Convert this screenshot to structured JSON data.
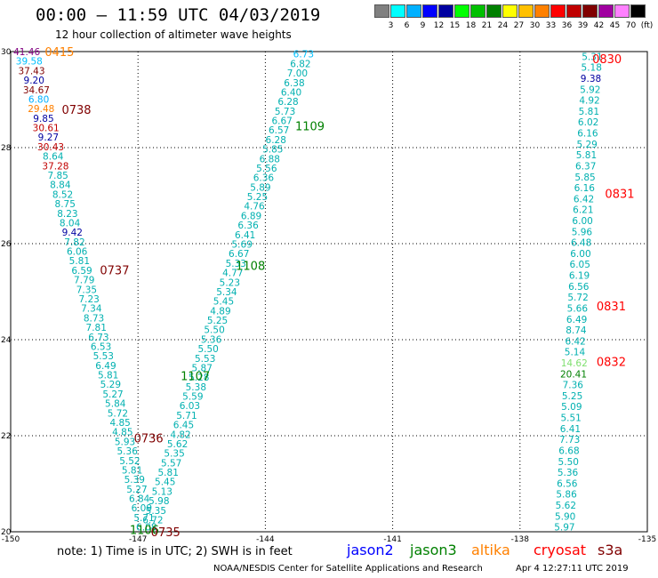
{
  "header": {
    "title": "00:00 – 11:59 UTC 04/03/2019",
    "subtitle": "12 hour collection of altimeter wave heights"
  },
  "scale": {
    "unit": "(ft)",
    "colors": [
      "#808080",
      "#00ffff",
      "#00b0ff",
      "#0000ff",
      "#0000a0",
      "#00ff00",
      "#00c000",
      "#008000",
      "#ffff00",
      "#ffc000",
      "#ff8000",
      "#ff0000",
      "#c00000",
      "#800000",
      "#a000a0",
      "#ff80ff",
      "#000000"
    ],
    "labels": [
      "3",
      "6",
      "9",
      "12",
      "15",
      "18",
      "21",
      "24",
      "27",
      "30",
      "33",
      "36",
      "39",
      "42",
      "45",
      "70"
    ]
  },
  "map": {
    "lon_ticks": [
      "-150",
      "-147",
      "-144",
      "-141",
      "-138",
      "-135"
    ],
    "lat_ticks": [
      "20",
      "22",
      "24",
      "26",
      "28",
      "30"
    ]
  },
  "chart_data": {
    "type": "scatter",
    "xlim": [
      -150,
      -135
    ],
    "ylim": [
      20,
      30
    ],
    "tracks": [
      {
        "name": "left",
        "start": [
          -149.62,
          30.0
        ],
        "end": [
          -146.8,
          20.1
        ],
        "values": [
          "41.46",
          "39.58",
          "37.43",
          "9.20",
          "34.67",
          "6.80",
          "29.48",
          "9.85",
          "30.61",
          "9.27",
          "30.43",
          "8.64",
          "37.28",
          "7.85",
          "8.84",
          "8.52",
          "8.75",
          "8.23",
          "8.04",
          "9.42",
          "7.82",
          "6.06",
          "5.81",
          "6.59",
          "7.79",
          "7.35",
          "7.23",
          "7.34",
          "8.73",
          "7.81",
          "6.73",
          "6.53",
          "5.53",
          "6.49",
          "5.81",
          "5.29",
          "5.27",
          "5.84",
          "5.72",
          "4.85",
          "4.85",
          "5.93",
          "5.36",
          "5.52",
          "5.81",
          "5.39",
          "5.27",
          "6.84",
          "6.09",
          "5.71",
          "6.08"
        ],
        "colors": [
          "#800080",
          "#00c0ff",
          "#800000",
          "#0000a0",
          "#800000",
          "#00b0ff",
          "#ff8000",
          "#0000a0",
          "#c00000",
          "#0000a0",
          "#c00000",
          "#00b0b0",
          "#c00000",
          "#00b0b0",
          "#00b0b0",
          "#00b0b0",
          "#00b0b0",
          "#00b0b0",
          "#00b0b0",
          "#0000a0",
          "#00b0b0",
          "#00b0b0",
          "#00b0b0",
          "#00b0b0",
          "#00b0b0",
          "#00b0b0",
          "#00b0b0",
          "#00b0b0",
          "#00b0b0",
          "#00b0b0",
          "#00b0b0",
          "#00b0b0",
          "#00b0b0",
          "#00b0b0",
          "#00b0b0",
          "#00b0b0",
          "#00b0b0",
          "#00b0b0",
          "#00b0b0",
          "#00b0b0",
          "#00b0b0",
          "#00b0b0",
          "#00b0b0",
          "#00b0b0",
          "#00b0b0",
          "#00b0b0",
          "#00b0b0",
          "#00b0b0",
          "#00b0b0",
          "#00b0b0",
          "#00b0b0"
        ]
      },
      {
        "name": "middle",
        "start": [
          -143.1,
          29.95
        ],
        "end": [
          -146.65,
          20.25
        ],
        "values": [
          "6.73",
          "6.82",
          "7.00",
          "6.38",
          "6.40",
          "6.28",
          "5.73",
          "6.67",
          "6.57",
          "6.28",
          "5.85",
          "6.88",
          "5.56",
          "6.36",
          "5.89",
          "5.25",
          "4.76",
          "6.89",
          "6.36",
          "6.41",
          "5.69",
          "6.67",
          "5.33",
          "4.77",
          "5.23",
          "5.34",
          "5.45",
          "4.89",
          "5.25",
          "5.50",
          "5.36",
          "5.50",
          "5.53",
          "5.87",
          "5.28",
          "5.38",
          "5.59",
          "6.03",
          "5.71",
          "6.45",
          "4.82",
          "5.62",
          "5.35",
          "5.57",
          "5.81",
          "5.45",
          "5.13",
          "5.98",
          "5.35",
          "6.72"
        ],
        "colors": [
          "#00c0ff",
          "#00b0b0",
          "#00b0b0",
          "#00b0b0",
          "#00b0b0",
          "#00b0b0",
          "#00b0b0",
          "#00b0b0",
          "#00b0b0",
          "#00b0b0",
          "#00b0b0",
          "#00b0b0",
          "#00b0b0",
          "#00b0b0",
          "#00b0b0",
          "#00b0b0",
          "#00b0b0",
          "#00b0b0",
          "#00b0b0",
          "#00b0b0",
          "#00b0b0",
          "#00b0b0",
          "#00b0b0",
          "#00b0b0",
          "#00b0b0",
          "#00b0b0",
          "#00b0b0",
          "#00b0b0",
          "#00b0b0",
          "#00b0b0",
          "#00b0b0",
          "#00b0b0",
          "#00b0b0",
          "#00b0b0",
          "#00b0b0",
          "#00b0b0",
          "#00b0b0",
          "#00b0b0",
          "#00b0b0",
          "#00b0b0",
          "#00b0b0",
          "#00b0b0",
          "#00b0b0",
          "#00b0b0",
          "#00b0b0",
          "#00b0b0",
          "#00b0b0",
          "#00b0b0",
          "#00b0b0",
          "#00b0b0"
        ]
      },
      {
        "name": "right",
        "start": [
          -136.3,
          29.9
        ],
        "end": [
          -136.95,
          20.1
        ],
        "values": [
          "5.31",
          "5.18",
          "9.38",
          "5.92",
          "4.92",
          "5.81",
          "6.02",
          "6.16",
          "5.29",
          "5.81",
          "6.37",
          "5.85",
          "6.16",
          "6.42",
          "6.21",
          "6.00",
          "5.96",
          "6.48",
          "6.00",
          "6.05",
          "6.19",
          "6.56",
          "5.72",
          "5.66",
          "6.49",
          "8.74",
          "6.42",
          "5.14",
          "14.62",
          "20.41",
          "7.36",
          "5.25",
          "5.09",
          "5.51",
          "6.41",
          "7.73",
          "6.68",
          "5.50",
          "5.36",
          "6.56",
          "5.86",
          "5.62",
          "5.90",
          "5.97"
        ],
        "colors": [
          "#00b0b0",
          "#00b0b0",
          "#0000a0",
          "#00b0b0",
          "#00b0b0",
          "#00b0b0",
          "#00b0b0",
          "#00b0b0",
          "#00b0b0",
          "#00b0b0",
          "#00b0b0",
          "#00b0b0",
          "#00b0b0",
          "#00b0b0",
          "#00b0b0",
          "#00b0b0",
          "#00b0b0",
          "#00b0b0",
          "#00b0b0",
          "#00b0b0",
          "#00b0b0",
          "#00b0b0",
          "#00b0b0",
          "#00b0b0",
          "#00b0b0",
          "#00b0b0",
          "#00b0b0",
          "#00b0b0",
          "#80e070",
          "#008000",
          "#00b0b0",
          "#00b0b0",
          "#00b0b0",
          "#00b0b0",
          "#00b0b0",
          "#00b0b0",
          "#00b0b0",
          "#00b0b0",
          "#00b0b0",
          "#00b0b0",
          "#00b0b0",
          "#00b0b0",
          "#00b0b0",
          "#00b0b0"
        ]
      }
    ],
    "time_labels": [
      {
        "text": "0415",
        "lon": -148.85,
        "lat": 30.0,
        "color": "#ff8000"
      },
      {
        "text": "0738",
        "lon": -148.45,
        "lat": 28.8,
        "color": "#800000"
      },
      {
        "text": "1109",
        "lon": -142.95,
        "lat": 28.45,
        "color": "#008000"
      },
      {
        "text": "0737",
        "lon": -147.55,
        "lat": 25.45,
        "color": "#800000"
      },
      {
        "text": "1108",
        "lon": -144.35,
        "lat": 25.55,
        "color": "#008000"
      },
      {
        "text": "1107",
        "lon": -145.65,
        "lat": 23.25,
        "color": "#008000"
      },
      {
        "text": "0736",
        "lon": -146.75,
        "lat": 21.95,
        "color": "#800000"
      },
      {
        "text": "1106",
        "lon": -146.85,
        "lat": 20.05,
        "color": "#008000"
      },
      {
        "text": "0735",
        "lon": -146.35,
        "lat": 20.0,
        "color": "#800000"
      },
      {
        "text": "0830",
        "lon": -135.95,
        "lat": 29.85,
        "color": "#ff0000"
      },
      {
        "text": "0831",
        "lon": -135.65,
        "lat": 27.05,
        "color": "#ff0000"
      },
      {
        "text": "0831",
        "lon": -135.85,
        "lat": 24.7,
        "color": "#ff0000"
      },
      {
        "text": "0832",
        "lon": -135.85,
        "lat": 23.55,
        "color": "#ff0000"
      }
    ]
  },
  "footer": {
    "note": "note:  1) Time is in UTC;  2) SWH is in feet",
    "legend": [
      {
        "name": "jason2",
        "color": "#0000ff"
      },
      {
        "name": "jason3",
        "color": "#008000"
      },
      {
        "name": "altika",
        "color": "#ff8000"
      },
      {
        "name": "cryosat",
        "color": "#ff0000"
      },
      {
        "name": "s3a",
        "color": "#800000"
      }
    ],
    "credit": "NOAA/NESDIS Center for Satellite Applications and Research",
    "timestamp": "Apr  4 12:27:11 UTC 2019"
  }
}
